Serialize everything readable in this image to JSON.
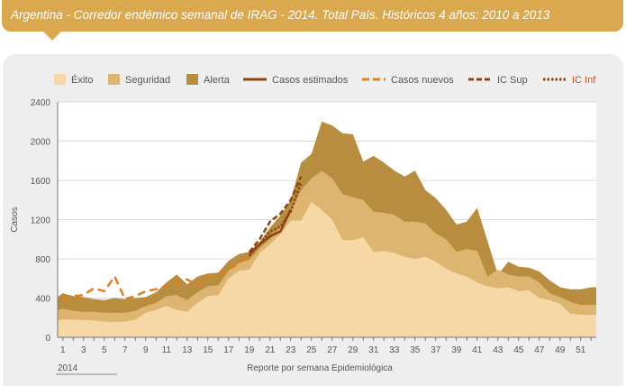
{
  "header": {
    "title": "Argentina - Corredor endémico semanal de IRAG - 2014. Total País. Históricos 4 años: 2010 a 2013"
  },
  "colors": {
    "exito": "#f5d8a6",
    "seguridad": "#ddb570",
    "alerta": "#b98d3f",
    "estimados": "#8b4513",
    "nuevos": "#e07f22",
    "ic": "#8b4513"
  },
  "chart_data": {
    "type": "area",
    "title": "Argentina - Corredor endémico semanal de IRAG - 2014. Total País. Históricos 4 años: 2010 a 2013",
    "xlabel": "Reporte por semana Epidemiológica",
    "ylabel": "Casos",
    "year_label": "2014",
    "xlim": [
      0.5,
      52.5
    ],
    "ylim": [
      0,
      2400
    ],
    "yticks": [
      0,
      400,
      800,
      1200,
      1600,
      2000,
      2400
    ],
    "xticks": [
      1,
      3,
      5,
      7,
      9,
      11,
      13,
      15,
      17,
      19,
      21,
      23,
      25,
      27,
      29,
      31,
      33,
      35,
      37,
      39,
      41,
      43,
      45,
      47,
      49,
      51
    ],
    "legend": [
      "Éxito",
      "Seguridad",
      "Alerta",
      "Casos estimados",
      "Casos nuevos",
      "IC Sup",
      "IC Inf"
    ],
    "legend_position": "top",
    "weeks": [
      0.5,
      1,
      2,
      3,
      4,
      5,
      6,
      7,
      8,
      9,
      10,
      11,
      12,
      13,
      14,
      15,
      16,
      17,
      18,
      19,
      20,
      21,
      22,
      23,
      24,
      25,
      26,
      27,
      28,
      29,
      30,
      31,
      32,
      33,
      34,
      35,
      36,
      37,
      38,
      39,
      40,
      41,
      42,
      43,
      44,
      45,
      46,
      47,
      48,
      49,
      50,
      51,
      52,
      52.5
    ],
    "series": [
      {
        "name": "Éxito",
        "values": [
          170,
          180,
          180,
          175,
          170,
          160,
          155,
          160,
          180,
          250,
          280,
          320,
          280,
          260,
          350,
          420,
          430,
          600,
          680,
          690,
          860,
          950,
          1050,
          1190,
          1190,
          1380,
          1300,
          1200,
          990,
          990,
          1020,
          870,
          880,
          860,
          820,
          800,
          820,
          770,
          700,
          650,
          620,
          560,
          520,
          500,
          510,
          470,
          480,
          400,
          380,
          340,
          240,
          230,
          230,
          230
        ]
      },
      {
        "name": "Seguridad",
        "values": [
          280,
          290,
          270,
          260,
          260,
          250,
          250,
          250,
          270,
          320,
          350,
          420,
          430,
          380,
          460,
          520,
          530,
          680,
          760,
          790,
          910,
          1000,
          1120,
          1280,
          1500,
          1620,
          1700,
          1620,
          1460,
          1430,
          1400,
          1280,
          1270,
          1250,
          1180,
          1180,
          1160,
          1060,
          1000,
          870,
          900,
          880,
          620,
          690,
          640,
          620,
          620,
          560,
          450,
          410,
          360,
          330,
          330,
          330
        ]
      },
      {
        "name": "Alerta",
        "values": [
          410,
          450,
          420,
          410,
          390,
          380,
          400,
          390,
          400,
          410,
          460,
          560,
          640,
          540,
          620,
          650,
          660,
          780,
          850,
          870,
          970,
          1120,
          1240,
          1400,
          1780,
          1870,
          2200,
          2160,
          2080,
          2070,
          1790,
          1850,
          1780,
          1700,
          1640,
          1700,
          1500,
          1420,
          1300,
          1150,
          1180,
          1320,
          980,
          640,
          770,
          720,
          710,
          670,
          580,
          510,
          490,
          490,
          510,
          510
        ]
      },
      {
        "name": "Casos estimados",
        "values": [
          null,
          null,
          null,
          null,
          null,
          null,
          null,
          null,
          null,
          null,
          null,
          null,
          null,
          null,
          null,
          null,
          null,
          null,
          null,
          850,
          950,
          1030,
          1080,
          1300,
          null,
          null,
          null,
          null,
          null,
          null,
          null,
          null,
          null,
          null,
          null,
          null,
          null,
          null,
          null,
          null,
          null,
          null,
          null,
          null,
          null,
          null,
          null,
          null,
          null,
          null,
          null,
          null,
          null,
          null
        ]
      },
      {
        "name": "Casos nuevos",
        "values": [
          null,
          380,
          420,
          430,
          500,
          470,
          620,
          390,
          420,
          470,
          490,
          520,
          560,
          590,
          530,
          620,
          640,
          690,
          760,
          820,
          null,
          null,
          null,
          null,
          null,
          null,
          null,
          null,
          null,
          null,
          null,
          null,
          null,
          null,
          null,
          null,
          null,
          null,
          null,
          null,
          null,
          null,
          null,
          null,
          null,
          null,
          null,
          null,
          null,
          null,
          null,
          null,
          null,
          null
        ]
      },
      {
        "name": "IC Sup",
        "values": [
          null,
          null,
          null,
          null,
          null,
          null,
          null,
          null,
          null,
          null,
          null,
          null,
          null,
          null,
          null,
          null,
          null,
          null,
          null,
          870,
          1000,
          1180,
          1260,
          1400,
          1640,
          null,
          null,
          null,
          null,
          null,
          null,
          null,
          null,
          null,
          null,
          null,
          null,
          null,
          null,
          null,
          null,
          null,
          null,
          null,
          null,
          null,
          null,
          null,
          null,
          null,
          null,
          null,
          null,
          null
        ]
      },
      {
        "name": "IC Inf",
        "values": [
          null,
          null,
          null,
          null,
          null,
          null,
          null,
          null,
          null,
          null,
          null,
          null,
          null,
          null,
          null,
          null,
          null,
          null,
          null,
          830,
          950,
          1080,
          1130,
          1280,
          1580,
          null,
          null,
          null,
          null,
          null,
          null,
          null,
          null,
          null,
          null,
          null,
          null,
          null,
          null,
          null,
          null,
          null,
          null,
          null,
          null,
          null,
          null,
          null,
          null,
          null,
          null,
          null,
          null,
          null
        ]
      }
    ]
  }
}
